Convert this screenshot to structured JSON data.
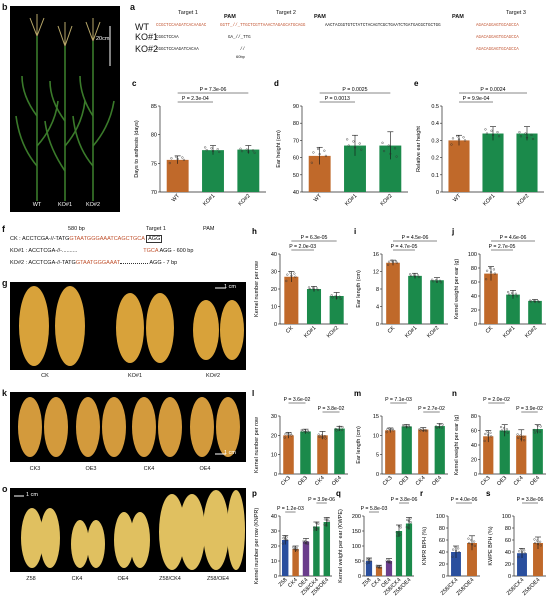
{
  "panels": {
    "b": {
      "label": "b",
      "scale": "20cm",
      "labels": [
        "WT",
        "KO#1",
        "KO#2"
      ]
    },
    "a": {
      "label": "a",
      "targets": [
        "Target 1",
        "Target 2",
        "Target 3"
      ],
      "pam": "PAM",
      "rows": [
        {
          "name": "WT",
          "seq_left": "CCGCTCCAAGATCACAAGAC",
          "seq_mid": "GGTT_//_TTGCTCGTTAAACTAGAGCATGCAGG",
          "seq_right": "AACTACGGTGTCTATCTACAGTCGCTGAATCTGATGACGCTGCTGG",
          "seq_tail": "AGACAGGAGTGCAGCCA"
        },
        {
          "name": "KO#1",
          "seq_left": "CGGCTCCAA",
          "seq_mid": "GA_//_TTG",
          "seq_tail": "AGACAGGAGTGCAGCCA"
        },
        {
          "name": "KO#2",
          "seq_left": "CGGCTCCAAGATCACAA",
          "seq_mid": "//",
          "seq_note": "60bp",
          "seq_tail": "AGACAGGAGTGCAGCCA"
        }
      ]
    },
    "f": {
      "label": "f",
      "top": "580 bp",
      "target": "Target  1",
      "pam": "PAM",
      "rows": [
        {
          "name": "CK :",
          "seq": "ACCTCGA-//-TATG",
          "orange": "GTAATGGGAAATCAGCTGCA",
          "pam": "AGG",
          "note": ""
        },
        {
          "name": "KO#1 :",
          "seq": "ACCTCGA-//-..........",
          "orange": "TGCA",
          "pam": "AGG",
          "note": "- 600 bp"
        },
        {
          "name": "KO#2 :",
          "seq": "ACCTCGA-//-TATG",
          "orange": "GTAATGGGAAAT",
          "pam": "AGG",
          "note": "- 7 bp"
        }
      ]
    },
    "g": {
      "label": "g",
      "scale": "1 cm",
      "labels": [
        "CK",
        "KO#1",
        "KO#2"
      ]
    },
    "k": {
      "label": "k",
      "scale": "1 cm",
      "labels": [
        "CK3",
        "OE3",
        "CK4",
        "OE4"
      ]
    },
    "o": {
      "label": "o",
      "scale": "1 cm",
      "labels": [
        "Z58",
        "CK4",
        "OE4",
        "Z58/CK4",
        "Z58/OE4"
      ]
    }
  },
  "colors": {
    "orange": "#c0692a",
    "green": "#1b8a4b",
    "purple": "#6a3d8c",
    "blue": "#2a4f9e",
    "gray": "#cccccc"
  },
  "charts": [
    {
      "id": "c",
      "label": "c",
      "type": "bar",
      "ylabel": "Days to anthesis (days)",
      "categories": [
        "WT",
        "KO#1",
        "KO#2"
      ],
      "values": [
        75.6,
        77.3,
        77.4
      ],
      "errors": [
        0.7,
        0.8,
        0.7
      ],
      "ylim": [
        70,
        85
      ],
      "yticks": [
        70,
        75,
        80,
        85
      ],
      "colors": [
        "orange",
        "green",
        "green"
      ],
      "pvalues": [
        {
          "text": "P = 7.3e-06",
          "from": 0,
          "to": 2
        },
        {
          "text": "P = 2.3e-04",
          "from": 0,
          "to": 1
        }
      ]
    },
    {
      "id": "d",
      "label": "d",
      "type": "bar",
      "ylabel": "Ear height (cm)",
      "categories": [
        "WT",
        "KO#1",
        "KO#2"
      ],
      "values": [
        61,
        67,
        67
      ],
      "errors": [
        5,
        6,
        8
      ],
      "ylim": [
        40,
        90
      ],
      "yticks": [
        40,
        50,
        60,
        70,
        80,
        90
      ],
      "colors": [
        "orange",
        "green",
        "green"
      ],
      "pvalues": [
        {
          "text": "P = 0.0025",
          "from": 0,
          "to": 2
        },
        {
          "text": "P = 0.0013",
          "from": 0,
          "to": 1
        }
      ]
    },
    {
      "id": "e",
      "label": "e",
      "type": "bar",
      "ylabel": "Relative ear height",
      "categories": [
        "WT",
        "KO#1",
        "KO#2"
      ],
      "values": [
        0.3,
        0.34,
        0.34
      ],
      "errors": [
        0.03,
        0.04,
        0.04
      ],
      "ylim": [
        0,
        0.5
      ],
      "yticks": [
        0,
        0.1,
        0.2,
        0.3,
        0.4,
        0.5
      ],
      "colors": [
        "orange",
        "green",
        "green"
      ],
      "pvalues": [
        {
          "text": "P = 0.0024",
          "from": 0,
          "to": 2
        },
        {
          "text": "P = 9.9e-04",
          "from": 0,
          "to": 1
        }
      ]
    },
    {
      "id": "h",
      "label": "h",
      "type": "bar",
      "ylabel": "Kernel number per row",
      "categories": [
        "CK",
        "KO#1",
        "KO#2"
      ],
      "values": [
        27,
        20,
        16
      ],
      "errors": [
        3,
        1.5,
        2
      ],
      "ylim": [
        0,
        40
      ],
      "yticks": [
        0,
        10,
        20,
        30,
        40
      ],
      "colors": [
        "orange",
        "green",
        "green"
      ],
      "pvalues": [
        {
          "text": "P = 6.3e-05",
          "from": 0,
          "to": 2
        },
        {
          "text": "P = 2.0e-03",
          "from": 0,
          "to": 1
        }
      ]
    },
    {
      "id": "i",
      "label": "i",
      "type": "bar",
      "ylabel": "Ear length (cm)",
      "categories": [
        "CK",
        "KO#1",
        "KO#2"
      ],
      "values": [
        14,
        11,
        10
      ],
      "errors": [
        0.6,
        0.6,
        0.6
      ],
      "ylim": [
        0,
        16
      ],
      "yticks": [
        0,
        4,
        8,
        12,
        16
      ],
      "colors": [
        "orange",
        "green",
        "green"
      ],
      "pvalues": [
        {
          "text": "P = 4.5e-06",
          "from": 0,
          "to": 2
        },
        {
          "text": "P = 4.7e-05",
          "from": 0,
          "to": 1
        }
      ]
    },
    {
      "id": "j",
      "label": "j",
      "type": "bar",
      "ylabel": "Kernel weight per ear (g)",
      "categories": [
        "CK",
        "KO#1",
        "KO#2"
      ],
      "values": [
        72,
        42,
        33
      ],
      "errors": [
        10,
        6,
        2
      ],
      "ylim": [
        0,
        100
      ],
      "yticks": [
        0,
        20,
        40,
        60,
        80,
        100
      ],
      "colors": [
        "orange",
        "green",
        "green"
      ],
      "pvalues": [
        {
          "text": "P = 4.6e-06",
          "from": 0,
          "to": 2
        },
        {
          "text": "P = 2.7e-05",
          "from": 0,
          "to": 1
        }
      ]
    },
    {
      "id": "l",
      "label": "l",
      "type": "bar",
      "ylabel": "Kernel number per row",
      "categories": [
        "CK3",
        "OE3",
        "CK4",
        "OE4"
      ],
      "values": [
        20,
        22,
        20,
        23.5
      ],
      "errors": [
        1.5,
        1.2,
        2,
        1.2
      ],
      "ylim": [
        0,
        30
      ],
      "yticks": [
        0,
        10,
        20,
        30
      ],
      "colors": [
        "orange",
        "green",
        "orange",
        "green"
      ],
      "pvalues": [
        {
          "text": "P = 3.6e-02",
          "from": 0,
          "to": 1
        },
        {
          "text": "P = 3.8e-02",
          "from": 2,
          "to": 3
        }
      ]
    },
    {
      "id": "m",
      "label": "m",
      "type": "bar",
      "ylabel": "Ear length (cm)",
      "categories": [
        "CK3",
        "OE3",
        "CK4",
        "OE4"
      ],
      "values": [
        11.3,
        12.3,
        11.5,
        12.4
      ],
      "errors": [
        0.6,
        0.5,
        0.5,
        0.6
      ],
      "ylim": [
        0,
        15
      ],
      "yticks": [
        0,
        5,
        10,
        15
      ],
      "colors": [
        "orange",
        "green",
        "orange",
        "green"
      ],
      "pvalues": [
        {
          "text": "P = 7.1e-03",
          "from": 0,
          "to": 1
        },
        {
          "text": "P = 2.7e-02",
          "from": 2,
          "to": 3
        }
      ]
    },
    {
      "id": "n",
      "label": "n",
      "type": "bar",
      "ylabel": "Kernel weight per ear (g)",
      "categories": [
        "CK3",
        "OE3",
        "CK4",
        "OE4"
      ],
      "values": [
        52,
        60,
        53,
        62
      ],
      "errors": [
        8,
        8,
        8,
        6
      ],
      "ylim": [
        0,
        80
      ],
      "yticks": [
        0,
        20,
        40,
        60,
        80
      ],
      "colors": [
        "orange",
        "green",
        "orange",
        "green"
      ],
      "pvalues": [
        {
          "text": "P = 2.0e-02",
          "from": 0,
          "to": 1
        },
        {
          "text": "P = 3.9e-02",
          "from": 2,
          "to": 3
        }
      ]
    },
    {
      "id": "p",
      "label": "p",
      "type": "bar",
      "ylabel": "Kernel number per row (KNPR)",
      "categories": [
        "Z58",
        "CK4",
        "OE4",
        "Z58/CK4",
        "Z58/OE4"
      ],
      "values": [
        24,
        18,
        23,
        33,
        36
      ],
      "errors": [
        3,
        2,
        2,
        3,
        3
      ],
      "ylim": [
        0,
        40
      ],
      "yticks": [
        0,
        10,
        20,
        30,
        40
      ],
      "colors": [
        "blue",
        "orange",
        "purple",
        "green",
        "green"
      ],
      "pvalues": [
        {
          "text": "P = 3.9e-06",
          "from": 3,
          "to": 4
        },
        {
          "text": "P = 1.2e-03",
          "from": 0,
          "to": 1
        }
      ]
    },
    {
      "id": "q",
      "label": "q",
      "type": "bar",
      "ylabel": "Kernel weight per ear (KWPE)",
      "categories": [
        "Z58",
        "CK4",
        "OE4",
        "Z58/CK4",
        "Z58/OE4"
      ],
      "values": [
        50,
        30,
        50,
        150,
        175
      ],
      "errors": [
        10,
        6,
        8,
        20,
        20
      ],
      "ylim": [
        0,
        200
      ],
      "yticks": [
        0,
        50,
        100,
        150,
        200
      ],
      "colors": [
        "blue",
        "orange",
        "purple",
        "green",
        "green"
      ],
      "pvalues": [
        {
          "text": "P = 3.8e-06",
          "from": 3,
          "to": 4
        },
        {
          "text": "P = 5.8e-03",
          "from": 0,
          "to": 1
        }
      ]
    },
    {
      "id": "r",
      "label": "r",
      "type": "bar",
      "ylabel": "KNPR BPH (%)",
      "categories": [
        "Z58/CK4",
        "Z58/OE4"
      ],
      "values": [
        40,
        55
      ],
      "errors": [
        10,
        12
      ],
      "ylim": [
        0,
        100
      ],
      "yticks": [
        0,
        20,
        40,
        60,
        80,
        100
      ],
      "colors": [
        "blue",
        "orange"
      ],
      "pvalues": [
        {
          "text": "P = 4.0e-06",
          "from": 0,
          "to": 1
        }
      ]
    },
    {
      "id": "s",
      "label": "s",
      "type": "bar",
      "ylabel": "KWPE BPH (%)",
      "categories": [
        "Z58/CK4",
        "Z58/OE4"
      ],
      "values": [
        38,
        55
      ],
      "errors": [
        8,
        10
      ],
      "ylim": [
        0,
        100
      ],
      "yticks": [
        0,
        20,
        40,
        60,
        80,
        100
      ],
      "colors": [
        "blue",
        "orange"
      ],
      "pvalues": [
        {
          "text": "P = 3.8e-06",
          "from": 0,
          "to": 1
        }
      ]
    }
  ]
}
